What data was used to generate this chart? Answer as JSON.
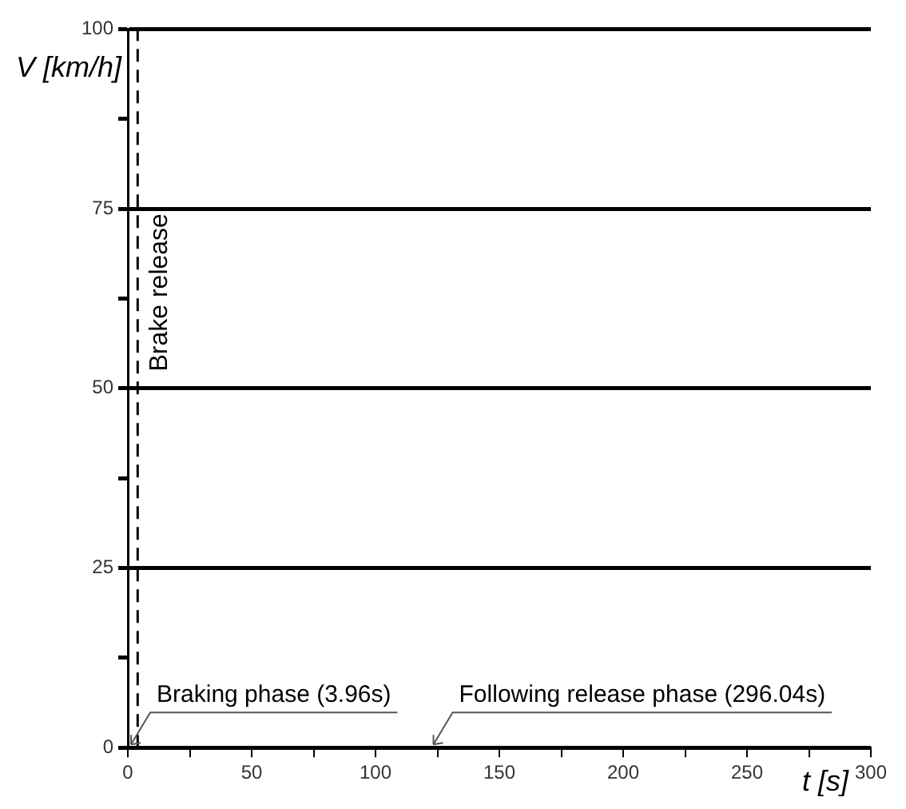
{
  "chart_data": {
    "type": "line",
    "xlabel": "t [s]",
    "ylabel": "V [km/h]",
    "xlim": [
      0,
      300
    ],
    "ylim": [
      0,
      100
    ],
    "xticks": [
      0,
      {
        "value": 25,
        "label": null
      },
      50,
      {
        "value": 75,
        "label": null
      },
      100,
      {
        "value": 125,
        "label": null
      },
      150,
      {
        "value": 175,
        "label": null
      },
      200,
      {
        "value": 225,
        "label": null
      },
      250,
      {
        "value": 275,
        "label": null
      },
      300
    ],
    "yticks": [
      0,
      {
        "value": 12.5,
        "label": null
      },
      25,
      {
        "value": 37.5,
        "label": null
      },
      50,
      {
        "value": 62.5,
        "label": null
      },
      75,
      {
        "value": 87.5,
        "label": null
      },
      100
    ],
    "grid": "y",
    "ref_lines": [
      {
        "axis": "x",
        "value": 3.96,
        "label": "Brake release",
        "line_style": "dashed"
      }
    ],
    "annotations": [
      "Braking phase (3.96s)",
      "Following release phase (296.04s)"
    ]
  }
}
